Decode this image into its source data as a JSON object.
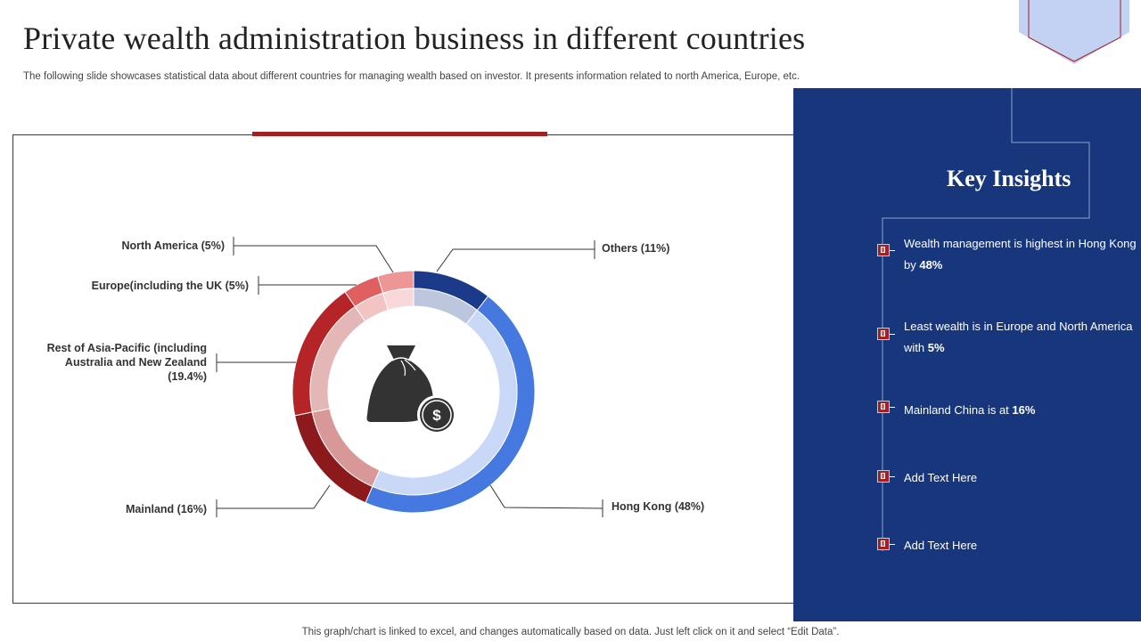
{
  "page": {
    "title": "Private wealth administration business in different countries",
    "subtitle": "The following slide showcases statistical data about different countries for managing wealth based on investor. It presents information related to north America, Europe, etc.",
    "footer": "This graph/chart is linked to excel,  and changes automatically based on data. Just left click on it and select “Edit Data”."
  },
  "chart_data": {
    "type": "pie",
    "variant": "donut",
    "categories": [
      "Others",
      "Hong Kong",
      "Mainland",
      "Rest of Asia-Pacific (including Australia and New Zealand)",
      "Europe(including the UK)",
      "North America"
    ],
    "values": [
      11,
      48,
      16,
      19.4,
      5,
      5
    ],
    "colors": [
      "#1b3a8a",
      "#4579e0",
      "#8c1a1c",
      "#b52426",
      "#e06060",
      "#ee9696"
    ],
    "inner_colors": [
      "#bcc6dd",
      "#c9d8f7",
      "#d99898",
      "#e4b7b7",
      "#f2c4c4",
      "#f8d8d8"
    ],
    "labels": {
      "others": "Others (11%)",
      "hong_kong": "Hong Kong (48%)",
      "mainland": "Mainland (16%)",
      "asia_line1": "Rest of Asia-Pacific (including",
      "asia_line2": "Australia and New Zealand",
      "asia_line3": "(19.4%)",
      "europe": "Europe(including the UK (5%)",
      "north_america": "North America (5%)"
    },
    "center_icon": "money-bag-icon"
  },
  "insights": {
    "title": "Key Insights",
    "items": [
      {
        "text": "Wealth management  is highest  in Hong Kong by ",
        "bold": "48%"
      },
      {
        "text": "Least wealth is in Europe  and North America with ",
        "bold": "5%"
      },
      {
        "text": "Mainland China  is at ",
        "bold": "16%"
      },
      {
        "text": "Add Text Here",
        "bold": ""
      },
      {
        "text": "Add Text Here",
        "bold": ""
      }
    ]
  },
  "colors": {
    "panel": "#17367b",
    "accent_red": "#a21f22",
    "deco_blue": "#c3d2f2"
  }
}
